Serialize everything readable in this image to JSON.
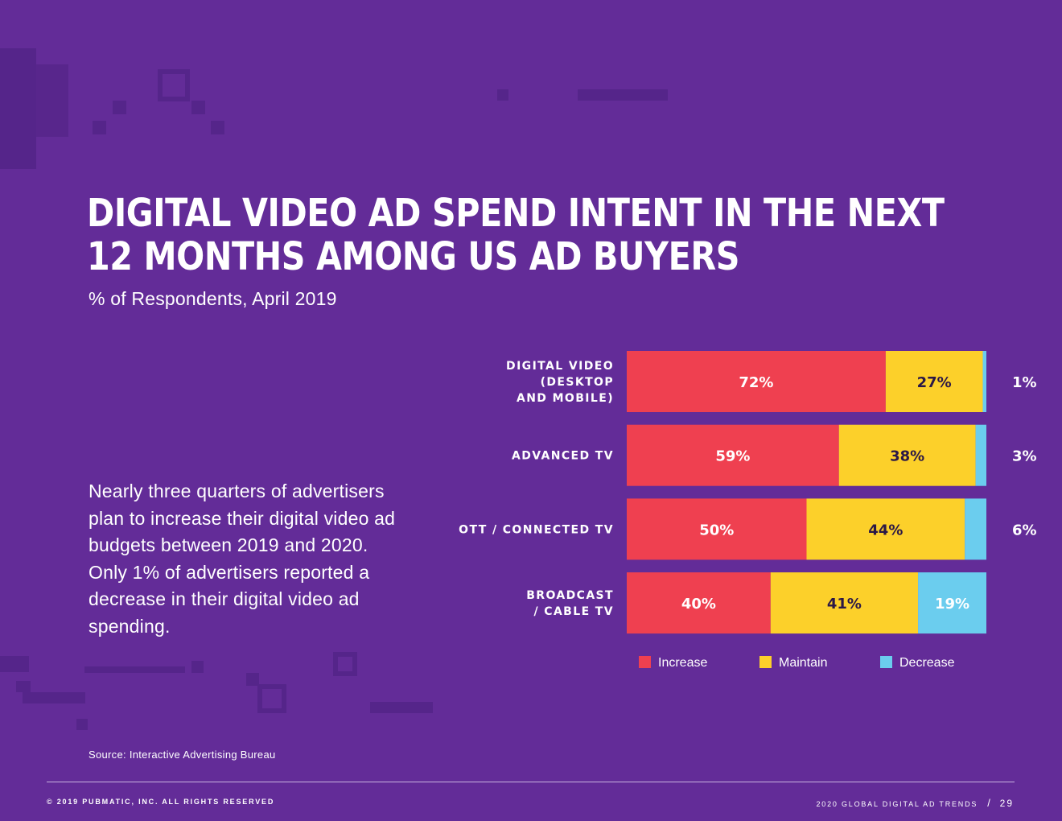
{
  "title_line1": "DIGITAL VIDEO AD SPEND INTENT IN THE NEXT",
  "title_line2": "12 MONTHS AMONG US AD BUYERS",
  "subtitle": "% of Respondents, April 2019",
  "body_text": "Nearly three quarters of advertisers plan to increase their digital video ad budgets between 2019 and 2020. Only 1% of advertisers reported a decrease in their digital video ad spending.",
  "source": "Source: Interactive Advertising Bureau",
  "footer": {
    "copyright": "© 2019 PUBMATIC, INC. ALL RIGHTS RESERVED",
    "publication": "2020 GLOBAL DIGITAL AD TRENDS",
    "separator": "/",
    "page": "29"
  },
  "colors": {
    "background": "#632c98",
    "increase": "#ef4050",
    "maintain": "#fcd02a",
    "decrease": "#6bcdee"
  },
  "chart_data": {
    "type": "bar",
    "orientation": "horizontal",
    "stacked": true,
    "value_unit": "%",
    "categories": [
      [
        "DIGITAL VIDEO",
        "(DESKTOP",
        "AND MOBILE)"
      ],
      [
        "ADVANCED TV"
      ],
      [
        "OTT / CONNECTED TV"
      ],
      [
        "BROADCAST",
        "/ CABLE TV"
      ]
    ],
    "series": [
      {
        "name": "Increase",
        "values": [
          72,
          59,
          50,
          40
        ]
      },
      {
        "name": "Maintain",
        "values": [
          27,
          38,
          44,
          41
        ]
      },
      {
        "name": "Decrease",
        "values": [
          1,
          3,
          6,
          19
        ]
      }
    ],
    "xlim": [
      0,
      100
    ],
    "legend_position": "bottom",
    "grid": false
  }
}
